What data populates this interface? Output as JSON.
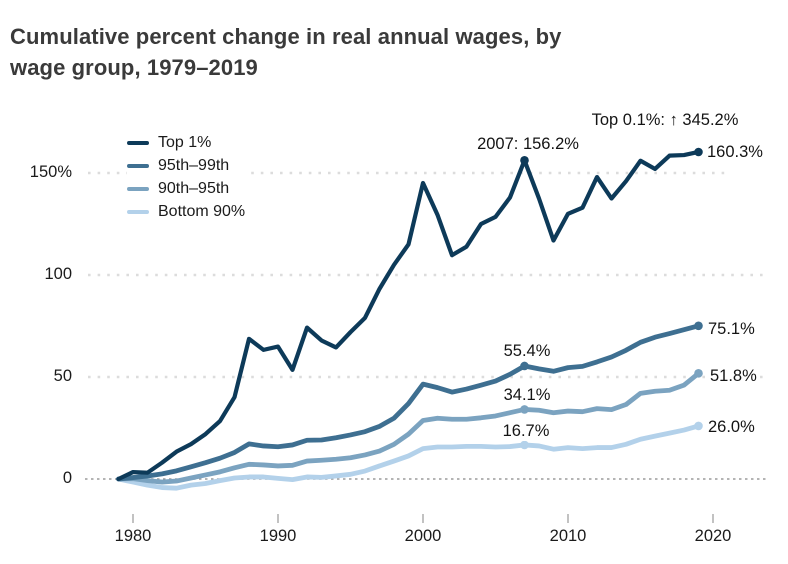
{
  "title_line1": "Cumulative percent change in real annual wages, by",
  "title_line2": "wage group, 1979–2019",
  "chart_data": {
    "type": "line",
    "x": [
      1979,
      1980,
      1981,
      1982,
      1983,
      1984,
      1985,
      1986,
      1987,
      1988,
      1989,
      1990,
      1991,
      1992,
      1993,
      1994,
      1995,
      1996,
      1997,
      1998,
      1999,
      2000,
      2001,
      2002,
      2003,
      2004,
      2005,
      2006,
      2007,
      2008,
      2009,
      2010,
      2011,
      2012,
      2013,
      2014,
      2015,
      2016,
      2017,
      2018,
      2019
    ],
    "series": [
      {
        "name": "Top 1%",
        "color": "#0d3a59",
        "values": [
          0,
          3.4,
          3.1,
          8.0,
          13.4,
          17.1,
          22.0,
          28.4,
          40.1,
          68.7,
          63.3,
          64.9,
          53.5,
          74.2,
          67.9,
          64.5,
          72.0,
          79.0,
          93.2,
          105.0,
          115.0,
          145.1,
          129.5,
          109.7,
          113.9,
          125.0,
          128.5,
          138.0,
          156.2,
          137.5,
          116.9,
          130.0,
          133.0,
          148.0,
          137.5,
          146.0,
          156.0,
          152.0,
          158.5,
          158.8,
          160.3
        ]
      },
      {
        "name": "95th–99th",
        "color": "#3e6f91",
        "values": [
          0,
          0.7,
          1.5,
          2.5,
          4.0,
          6.0,
          8.0,
          10.2,
          13.0,
          17.2,
          16.2,
          15.8,
          16.7,
          19.0,
          19.1,
          20.2,
          21.6,
          23.2,
          25.8,
          29.8,
          37.0,
          46.5,
          44.8,
          42.6,
          44.1,
          46.0,
          48.0,
          51.3,
          55.4,
          54.0,
          52.8,
          54.6,
          55.2,
          57.4,
          59.8,
          63.1,
          67.0,
          69.5,
          71.3,
          73.2,
          75.1
        ]
      },
      {
        "name": "90th–95th",
        "color": "#7ba3c0",
        "values": [
          0,
          0.2,
          -0.8,
          -1.5,
          -1.0,
          0.5,
          2.0,
          3.5,
          5.5,
          7.2,
          6.9,
          6.4,
          6.7,
          8.8,
          9.2,
          9.7,
          10.4,
          11.8,
          13.7,
          17.0,
          22.0,
          28.7,
          29.8,
          29.3,
          29.3,
          30.0,
          30.9,
          32.5,
          34.1,
          33.7,
          32.5,
          33.3,
          33.0,
          34.5,
          34.0,
          36.5,
          42.0,
          43.0,
          43.5,
          46.0,
          51.8
        ]
      },
      {
        "name": "Bottom 90%",
        "color": "#b3d1ea",
        "values": [
          0,
          -1.5,
          -3.0,
          -4.2,
          -4.5,
          -3.0,
          -2.2,
          -0.8,
          0.5,
          1.0,
          1.0,
          0.3,
          -0.3,
          1.0,
          0.8,
          1.5,
          2.3,
          3.9,
          6.4,
          8.8,
          11.3,
          14.9,
          15.7,
          15.7,
          16.0,
          16.0,
          15.7,
          15.9,
          16.7,
          16.2,
          14.6,
          15.4,
          14.9,
          15.4,
          15.4,
          17.0,
          19.5,
          21.0,
          22.5,
          24.0,
          26.0
        ]
      }
    ],
    "y_ticks": [
      {
        "label": "150%",
        "value": 150
      },
      {
        "label": "100",
        "value": 100
      },
      {
        "label": "50",
        "value": 50
      },
      {
        "label": "0",
        "value": 0
      }
    ],
    "x_ticks": [
      {
        "label": "1980",
        "year": 1980
      },
      {
        "label": "1990",
        "year": 1990
      },
      {
        "label": "2000",
        "year": 2000
      },
      {
        "label": "2010",
        "year": 2010
      },
      {
        "label": "2020",
        "year": 2020
      }
    ],
    "ylim": [
      -12,
      176
    ],
    "xlim": [
      1979,
      2024
    ],
    "grid": "horizontal dotted gridlines at 50, 100, 150; dashed gray line at 0",
    "legend_position": "top-left inside plot",
    "markers": [
      {
        "series": 0,
        "year": 2007,
        "value": 156.2
      },
      {
        "series": 0,
        "year": 2019,
        "value": 160.3
      },
      {
        "series": 1,
        "year": 2007,
        "value": 55.4
      },
      {
        "series": 1,
        "year": 2019,
        "value": 75.1
      },
      {
        "series": 2,
        "year": 2007,
        "value": 34.1
      },
      {
        "series": 2,
        "year": 2019,
        "value": 51.8
      },
      {
        "series": 3,
        "year": 2007,
        "value": 16.7
      },
      {
        "series": 3,
        "year": 2019,
        "value": 26.0
      }
    ],
    "annotations": [
      {
        "id": "top01",
        "text": "Top 0.1%: ↑ 345.2%"
      },
      {
        "id": "peak2007",
        "text": "2007: 156.2%"
      },
      {
        "id": "end_top1",
        "text": "160.3%"
      },
      {
        "id": "end_9599",
        "text": "75.1%"
      },
      {
        "id": "end_9095",
        "text": "51.8%"
      },
      {
        "id": "end_b90",
        "text": "26.0%"
      },
      {
        "id": "mid_9599",
        "text": "55.4%"
      },
      {
        "id": "mid_9095",
        "text": "34.1%"
      },
      {
        "id": "mid_b90",
        "text": "16.7%"
      }
    ],
    "colors": {
      "top_1": "#0d3a59",
      "p95_99": "#3e6f91",
      "p90_95": "#7ba3c0",
      "bottom_90": "#b3d1ea",
      "gridline": "#dcdcdc",
      "zero_line": "#9c9c9c",
      "tick": "#adadad",
      "title_text": "#3a3a3a",
      "label_text": "#1b1b1b"
    }
  }
}
